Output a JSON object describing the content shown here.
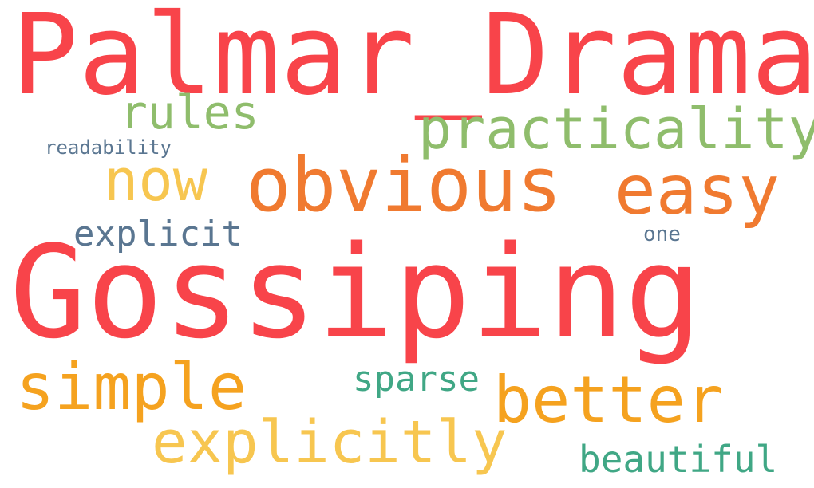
{
  "palette": {
    "red": "#f8444a",
    "orange": "#f07a30",
    "amber": "#f5a21f",
    "yellow": "#f7c650",
    "green": "#8fbd6c",
    "teal": "#40a785",
    "slate": "#5a7691",
    "background": "#ffffff"
  },
  "words": [
    {
      "text": "Palmar_Drama",
      "color": "#f8444a"
    },
    {
      "text": "Gossiping",
      "color": "#f8444a"
    },
    {
      "text": "obvious",
      "color": "#f07a30"
    },
    {
      "text": "easy",
      "color": "#f07a30"
    },
    {
      "text": "practicality",
      "color": "#8fbd6c"
    },
    {
      "text": "rules",
      "color": "#8fbd6c"
    },
    {
      "text": "now",
      "color": "#f7c650"
    },
    {
      "text": "simple",
      "color": "#f5a21f"
    },
    {
      "text": "better",
      "color": "#f5a21f"
    },
    {
      "text": "explicitly",
      "color": "#f7c650"
    },
    {
      "text": "explicit",
      "color": "#5a7691"
    },
    {
      "text": "sparse",
      "color": "#40a785"
    },
    {
      "text": "beautiful",
      "color": "#40a785"
    },
    {
      "text": "readability",
      "color": "#5a7691"
    },
    {
      "text": "one",
      "color": "#5a7691"
    }
  ]
}
